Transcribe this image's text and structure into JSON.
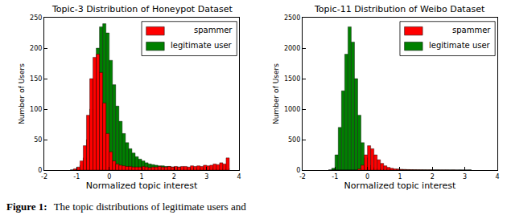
{
  "chart_data": [
    {
      "type": "histogram",
      "title": "Topic-3 Distribution of Honeypot Dataset",
      "x_label": "Normalized topic interest",
      "y_label": "Number of Users",
      "bins": [
        -1.2,
        -1.1,
        -1.0,
        -0.9,
        -0.8,
        -0.7,
        -0.6,
        -0.5,
        -0.4,
        -0.3,
        -0.2,
        -0.1,
        0.0,
        0.1,
        0.2,
        0.3,
        0.4,
        0.5,
        0.6,
        0.7,
        0.8,
        0.9,
        1.0,
        1.1,
        1.2,
        1.3,
        1.4,
        1.5,
        1.6,
        1.7,
        1.8,
        1.9,
        2.0,
        2.1,
        2.2,
        2.3,
        2.4,
        2.5,
        2.6,
        2.7,
        2.8,
        2.9,
        3.0,
        3.1,
        3.2,
        3.3,
        3.4,
        3.5,
        3.6,
        3.7
      ],
      "series": [
        {
          "name": "spammer",
          "color": "#ff0000",
          "values": [
            0,
            2,
            5,
            15,
            40,
            90,
            150,
            185,
            190,
            160,
            110,
            60,
            30,
            15,
            10,
            8,
            7,
            6,
            6,
            5,
            5,
            5,
            6,
            5,
            4,
            5,
            5,
            6,
            5,
            5,
            6,
            5,
            6,
            5,
            6,
            6,
            5,
            7,
            6,
            7,
            6,
            8,
            7,
            8,
            10,
            9,
            12,
            10,
            20
          ]
        },
        {
          "name": "legitimate user",
          "color": "#008000",
          "values": [
            0,
            1,
            3,
            8,
            20,
            50,
            100,
            150,
            200,
            235,
            240,
            225,
            180,
            140,
            105,
            80,
            60,
            45,
            35,
            28,
            22,
            18,
            15,
            12,
            10,
            9,
            8,
            7,
            7,
            6,
            6,
            5,
            5,
            5,
            4,
            4,
            4,
            4,
            3,
            3,
            3,
            3,
            3,
            3,
            2,
            2,
            2,
            2,
            3
          ]
        }
      ],
      "xlim": [
        -2,
        4
      ],
      "xticks": [
        -2,
        -1,
        0,
        1,
        2,
        3,
        4
      ],
      "ylim": [
        0,
        250
      ],
      "yticks": [
        0,
        50,
        100,
        150,
        200,
        250
      ],
      "grid": false,
      "legend": "top-right"
    },
    {
      "type": "histogram",
      "title": "Topic-11 Distribution of Weibo Dataset",
      "x_label": "Normalized topic interest",
      "y_label": "Number of Users",
      "bins": [
        -1.2,
        -1.1,
        -1.0,
        -0.9,
        -0.8,
        -0.7,
        -0.6,
        -0.5,
        -0.4,
        -0.3,
        -0.2,
        -0.1,
        0.0,
        0.1,
        0.2,
        0.3,
        0.4,
        0.5,
        0.6,
        0.7,
        0.8,
        0.9,
        1.0,
        1.1,
        1.2,
        1.3,
        1.4,
        1.5,
        1.6,
        1.7,
        1.8,
        1.9,
        2.0,
        2.1,
        2.2,
        2.3,
        2.4,
        2.5,
        2.6,
        2.7,
        2.8,
        2.9,
        3.0,
        3.1,
        3.2
      ],
      "series": [
        {
          "name": "spammer",
          "color": "#ff0000",
          "values": [
            0,
            0,
            0,
            0,
            0,
            0,
            0,
            0,
            0,
            20,
            80,
            250,
            400,
            350,
            250,
            170,
            110,
            70,
            45,
            30,
            20,
            15,
            10,
            8,
            6,
            5,
            4,
            3,
            3,
            2,
            2,
            2,
            1,
            1,
            1,
            1,
            1,
            0,
            1,
            0,
            0,
            0,
            0,
            0
          ]
        },
        {
          "name": "legitimate user",
          "color": "#008000",
          "values": [
            0,
            30,
            250,
            700,
            1300,
            1900,
            2350,
            2100,
            1500,
            900,
            450,
            200,
            80,
            40,
            20,
            15,
            10,
            8,
            6,
            5,
            4,
            15,
            12,
            10,
            8,
            6,
            5,
            4,
            3,
            3,
            2,
            2,
            2,
            2,
            1,
            1,
            1,
            1,
            1,
            0,
            1,
            0,
            0,
            1
          ]
        }
      ],
      "xlim": [
        -2,
        4
      ],
      "xticks": [
        -2,
        -1,
        0,
        1,
        2,
        3,
        4
      ],
      "ylim": [
        0,
        2500
      ],
      "yticks": [
        0,
        500,
        1000,
        1500,
        2000,
        2500
      ],
      "grid": false,
      "legend": "top-right"
    }
  ],
  "caption": {
    "label": "Figure 1:",
    "text": "The topic distributions of legitimate users and"
  }
}
